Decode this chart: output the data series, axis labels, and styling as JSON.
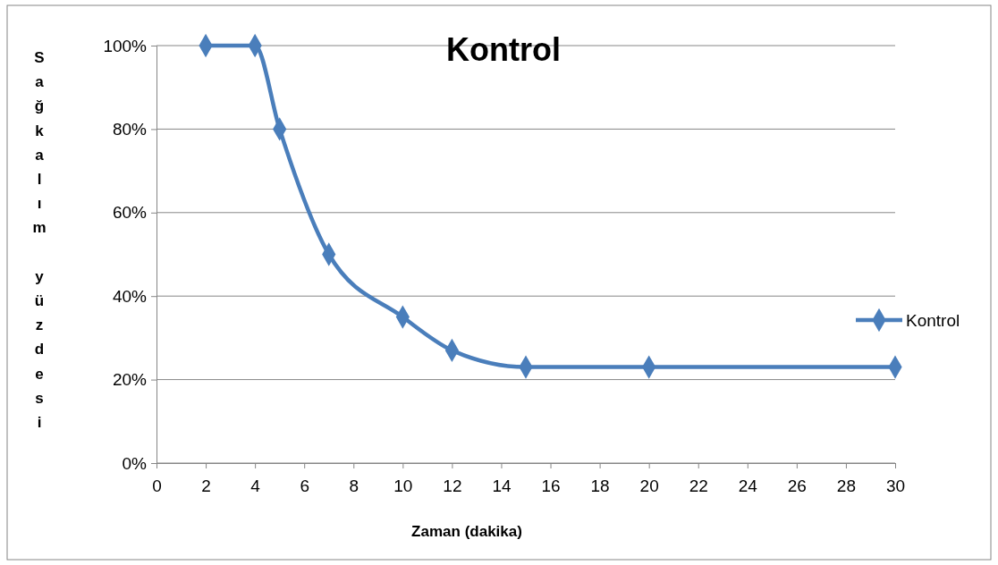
{
  "chart_data": {
    "type": "line",
    "title": "Kontrol",
    "xlabel": "Zaman (dakika)",
    "ylabel": "Sağkalım yüzdesi",
    "x": [
      2,
      4,
      5,
      7,
      10,
      12,
      15,
      20,
      30
    ],
    "series": [
      {
        "name": "Kontrol",
        "color": "#4a7ebb",
        "values": [
          100,
          100,
          80,
          50,
          35,
          27,
          23,
          23,
          23
        ]
      }
    ],
    "xlim": [
      0,
      30
    ],
    "xticks": [
      0,
      2,
      4,
      6,
      8,
      10,
      12,
      14,
      16,
      18,
      20,
      22,
      24,
      26,
      28,
      30
    ],
    "ylim": [
      0,
      100
    ],
    "yticks": [
      {
        "value": 0,
        "label": "0%"
      },
      {
        "value": 20,
        "label": "20%"
      },
      {
        "value": 40,
        "label": "40%"
      },
      {
        "value": 60,
        "label": "60%"
      },
      {
        "value": 80,
        "label": "80%"
      },
      {
        "value": 100,
        "label": "100%"
      }
    ],
    "grid": "y",
    "legend": "right",
    "marker": "diamond",
    "line_style": "solid"
  }
}
